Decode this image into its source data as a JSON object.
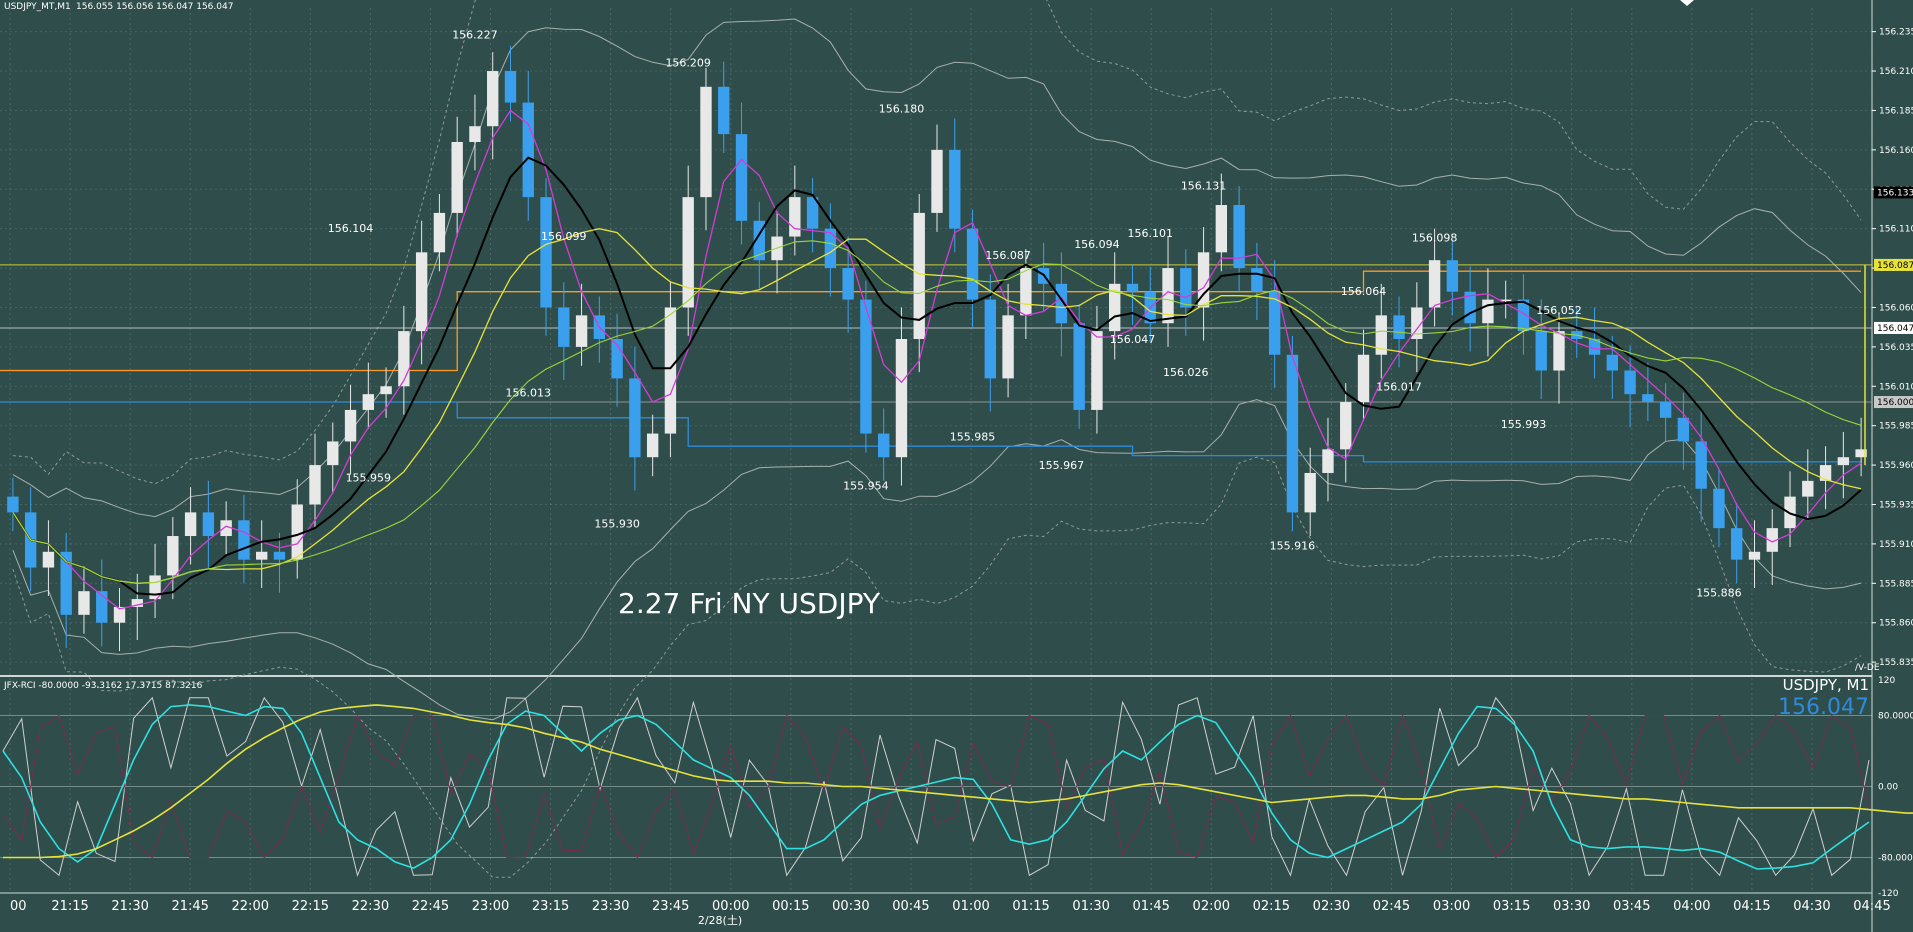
{
  "window": {
    "symbol_header": "USDJPY_MT,M1",
    "ohlc_header": "156.055 156.056 156.047 156.047",
    "caption": "2.27 Fri NY USDJPY",
    "brand": "/V-DE"
  },
  "subwindow": {
    "header": "JFX-RCI -80.0000 -93.3162 17.3715 87.3216",
    "symbol_tf": "USDJPY, M1",
    "price": "156.047"
  },
  "colors": {
    "background": "#2f4e4b",
    "grid": "#ffffff",
    "candle_up": "#e8e8e8",
    "candle_down": "#3aa0ee",
    "ma_fast": "#d23cd6",
    "ma_mid": "#000000",
    "ma_slow": "#e6e23a",
    "ma_long": "#9ad63a",
    "band": "#b0b0b0",
    "level_orange": "#ff9a1e",
    "level_blue": "#2e8bdb",
    "level_yellow": "#e6e23a",
    "rci_short": "#d0d0d0",
    "rci_mid": "#2ee0e0",
    "rci_long": "#e6e23a",
    "rci_dark": "#7a2a50",
    "price_text": "#2e8bdb"
  },
  "chart_data": [
    {
      "type": "candlestick",
      "title": "USDJPY_MT,M1",
      "ylim": [
        155.83,
        156.25
      ],
      "x_ticks": [
        "00",
        "21:15",
        "21:30",
        "21:45",
        "22:00",
        "22:15",
        "22:30",
        "22:45",
        "23:00",
        "23:15",
        "23:30",
        "23:45",
        "00:00",
        "00:15",
        "00:30",
        "00:45",
        "01:00",
        "01:15",
        "01:30",
        "01:45",
        "02:00",
        "02:15",
        "02:30",
        "02:45",
        "03:00",
        "03:15",
        "03:30",
        "03:45",
        "04:00",
        "04:15",
        "04:30",
        "04:45"
      ],
      "date_label": "2/28(土)",
      "y_ticks": [
        "156.235",
        "156.210",
        "156.185",
        "156.160",
        "156.135",
        "156.110",
        "156.085",
        "156.060",
        "156.035",
        "156.010",
        "155.985",
        "155.960",
        "155.935",
        "155.910",
        "155.885",
        "155.860",
        "155.835"
      ],
      "price_tags": [
        {
          "text": "156.133",
          "value": 156.133,
          "style": "black"
        },
        {
          "text": "156.087",
          "value": 156.087,
          "style": "yellow"
        },
        {
          "text": "156.047",
          "value": 156.047,
          "style": "white"
        },
        {
          "text": "156.000",
          "value": 156.0,
          "style": "gray"
        }
      ],
      "swing_labels": [
        {
          "text": "156.227",
          "i": 26,
          "v": 156.227,
          "pos": "above"
        },
        {
          "text": "156.104",
          "i": 19,
          "v": 156.104,
          "pos": "above"
        },
        {
          "text": "155.959",
          "i": 20,
          "v": 155.959,
          "pos": "below"
        },
        {
          "text": "156.099",
          "i": 31,
          "v": 156.099,
          "pos": "above"
        },
        {
          "text": "156.013",
          "i": 29,
          "v": 156.013,
          "pos": "below"
        },
        {
          "text": "155.930",
          "i": 34,
          "v": 155.93,
          "pos": "below"
        },
        {
          "text": "156.209",
          "i": 38,
          "v": 156.209,
          "pos": "above"
        },
        {
          "text": "156.180",
          "i": 50,
          "v": 156.18,
          "pos": "above"
        },
        {
          "text": "155.954",
          "i": 48,
          "v": 155.954,
          "pos": "below"
        },
        {
          "text": "155.985",
          "i": 54,
          "v": 155.985,
          "pos": "below"
        },
        {
          "text": "156.087",
          "i": 56,
          "v": 156.087,
          "pos": "above"
        },
        {
          "text": "155.967",
          "i": 59,
          "v": 155.967,
          "pos": "below"
        },
        {
          "text": "156.094",
          "i": 61,
          "v": 156.094,
          "pos": "above"
        },
        {
          "text": "156.047",
          "i": 63,
          "v": 156.047,
          "pos": "below"
        },
        {
          "text": "156.101",
          "i": 64,
          "v": 156.101,
          "pos": "above"
        },
        {
          "text": "156.026",
          "i": 66,
          "v": 156.026,
          "pos": "below"
        },
        {
          "text": "156.131",
          "i": 67,
          "v": 156.131,
          "pos": "above"
        },
        {
          "text": "155.916",
          "i": 72,
          "v": 155.916,
          "pos": "below"
        },
        {
          "text": "156.064",
          "i": 76,
          "v": 156.064,
          "pos": "above"
        },
        {
          "text": "156.017",
          "i": 78,
          "v": 156.017,
          "pos": "below"
        },
        {
          "text": "156.098",
          "i": 80,
          "v": 156.098,
          "pos": "above"
        },
        {
          "text": "156.052",
          "i": 87,
          "v": 156.052,
          "pos": "above"
        },
        {
          "text": "155.993",
          "i": 85,
          "v": 155.993,
          "pos": "below"
        },
        {
          "text": "155.886",
          "i": 96,
          "v": 155.886,
          "pos": "below"
        }
      ],
      "closes": [
        155.93,
        155.895,
        155.905,
        155.865,
        155.88,
        155.86,
        155.87,
        155.875,
        155.89,
        155.915,
        155.93,
        155.915,
        155.925,
        155.9,
        155.905,
        155.9,
        155.935,
        155.96,
        155.975,
        155.995,
        156.005,
        156.01,
        156.045,
        156.095,
        156.12,
        156.165,
        156.175,
        156.21,
        156.19,
        156.13,
        156.06,
        156.035,
        156.055,
        156.04,
        156.015,
        155.965,
        155.98,
        156.06,
        156.13,
        156.2,
        156.17,
        156.115,
        156.09,
        156.105,
        156.13,
        156.11,
        156.085,
        156.065,
        155.98,
        155.965,
        156.04,
        156.12,
        156.16,
        156.11,
        156.065,
        156.015,
        156.055,
        156.085,
        156.075,
        156.05,
        155.995,
        156.045,
        156.075,
        156.07,
        156.05,
        156.085,
        156.06,
        156.095,
        156.125,
        156.085,
        156.07,
        156.03,
        155.93,
        155.955,
        155.97,
        156.0,
        156.03,
        156.055,
        156.04,
        156.06,
        156.09,
        156.07,
        156.05,
        156.065,
        156.065,
        156.045,
        156.02,
        156.045,
        156.04,
        156.03,
        156.02,
        156.005,
        156.0,
        155.99,
        155.975,
        155.945,
        155.92,
        155.9,
        155.905,
        155.92,
        155.94,
        155.95,
        155.96,
        155.965,
        155.97
      ],
      "levels": [
        {
          "name": "yellow",
          "value": 156.087,
          "color": "#e6e23a"
        },
        {
          "name": "white",
          "value": 156.047,
          "color": "#d0d0d0"
        },
        {
          "name": "gray",
          "value": 156.0,
          "color": "#a0a0a0"
        }
      ],
      "level_steps": [
        {
          "name": "orange",
          "points": [
            [
              0,
              156.02
            ],
            [
              25,
              156.02
            ],
            [
              25,
              156.07
            ],
            [
              76,
              156.07
            ],
            [
              76,
              156.083
            ],
            [
              104,
              156.083
            ]
          ],
          "color": "#ff9a1e"
        },
        {
          "name": "blue",
          "points": [
            [
              0,
              156.0
            ],
            [
              25,
              156.0
            ],
            [
              25,
              155.99
            ],
            [
              38,
              155.99
            ],
            [
              38,
              155.972
            ],
            [
              63,
              155.972
            ],
            [
              63,
              155.966
            ],
            [
              76,
              155.966
            ],
            [
              76,
              155.962
            ],
            [
              104,
              155.962
            ]
          ],
          "color": "#2e8bdb"
        }
      ]
    },
    {
      "type": "line",
      "title": "JFX-RCI -80.0000 -93.3162 17.3715 87.3216",
      "ylim": [
        -120,
        120
      ],
      "y_ticks": [
        "120",
        "80.0000",
        "0.00",
        "-80.0000",
        "-120"
      ],
      "levels": [
        80,
        0,
        -80
      ],
      "series": [
        {
          "values": [
            40,
            10,
            -40,
            -70,
            -85,
            -70,
            -20,
            30,
            70,
            90,
            92,
            90,
            85,
            80,
            90,
            88,
            60,
            10,
            -40,
            -60,
            -70,
            -85,
            -92,
            -80,
            -60,
            -20,
            30,
            70,
            85,
            80,
            60,
            40,
            60,
            75,
            80,
            70,
            50,
            30,
            20,
            10,
            -10,
            -40,
            -70,
            -70,
            -60,
            -40,
            -20,
            -10,
            -5,
            0,
            5,
            10,
            8,
            -20,
            -60,
            -65,
            -60,
            -40,
            -10,
            20,
            40,
            30,
            50,
            70,
            80,
            72,
            40,
            10,
            -30,
            -60,
            -75,
            -80,
            -70,
            -60,
            -50,
            -40,
            -20,
            20,
            60,
            90,
            88,
            70,
            40,
            -20,
            -60,
            -68,
            -70,
            -68,
            -68,
            -70,
            -72,
            -70,
            -74,
            -84,
            -93,
            -92,
            -90,
            -86,
            -70,
            -55,
            -40
          ]
        },
        {
          "values": [
            -80,
            -80,
            -80,
            -79,
            -76,
            -70,
            -60,
            -50,
            -38,
            -24,
            -8,
            8,
            26,
            42,
            55,
            66,
            76,
            84,
            88,
            90,
            92,
            90,
            88,
            84,
            80,
            75,
            72,
            70,
            66,
            60,
            55,
            50,
            42,
            36,
            30,
            24,
            18,
            12,
            8,
            6,
            6,
            6,
            4,
            4,
            2,
            0,
            0,
            -2,
            -4,
            -6,
            -8,
            -10,
            -12,
            -14,
            -16,
            -18,
            -16,
            -14,
            -10,
            -6,
            -2,
            2,
            4,
            2,
            -2,
            -6,
            -10,
            -14,
            -18,
            -16,
            -14,
            -12,
            -10,
            -10,
            -12,
            -14,
            -14,
            -10,
            -4,
            -2,
            0,
            -2,
            -4,
            -6,
            -8,
            -10,
            -12,
            -14,
            -14,
            -16,
            -18,
            -20,
            -22,
            -24,
            -24,
            -24,
            -24,
            -24,
            -24,
            -24,
            -26,
            -28,
            -30,
            -30
          ]
        }
      ]
    }
  ]
}
